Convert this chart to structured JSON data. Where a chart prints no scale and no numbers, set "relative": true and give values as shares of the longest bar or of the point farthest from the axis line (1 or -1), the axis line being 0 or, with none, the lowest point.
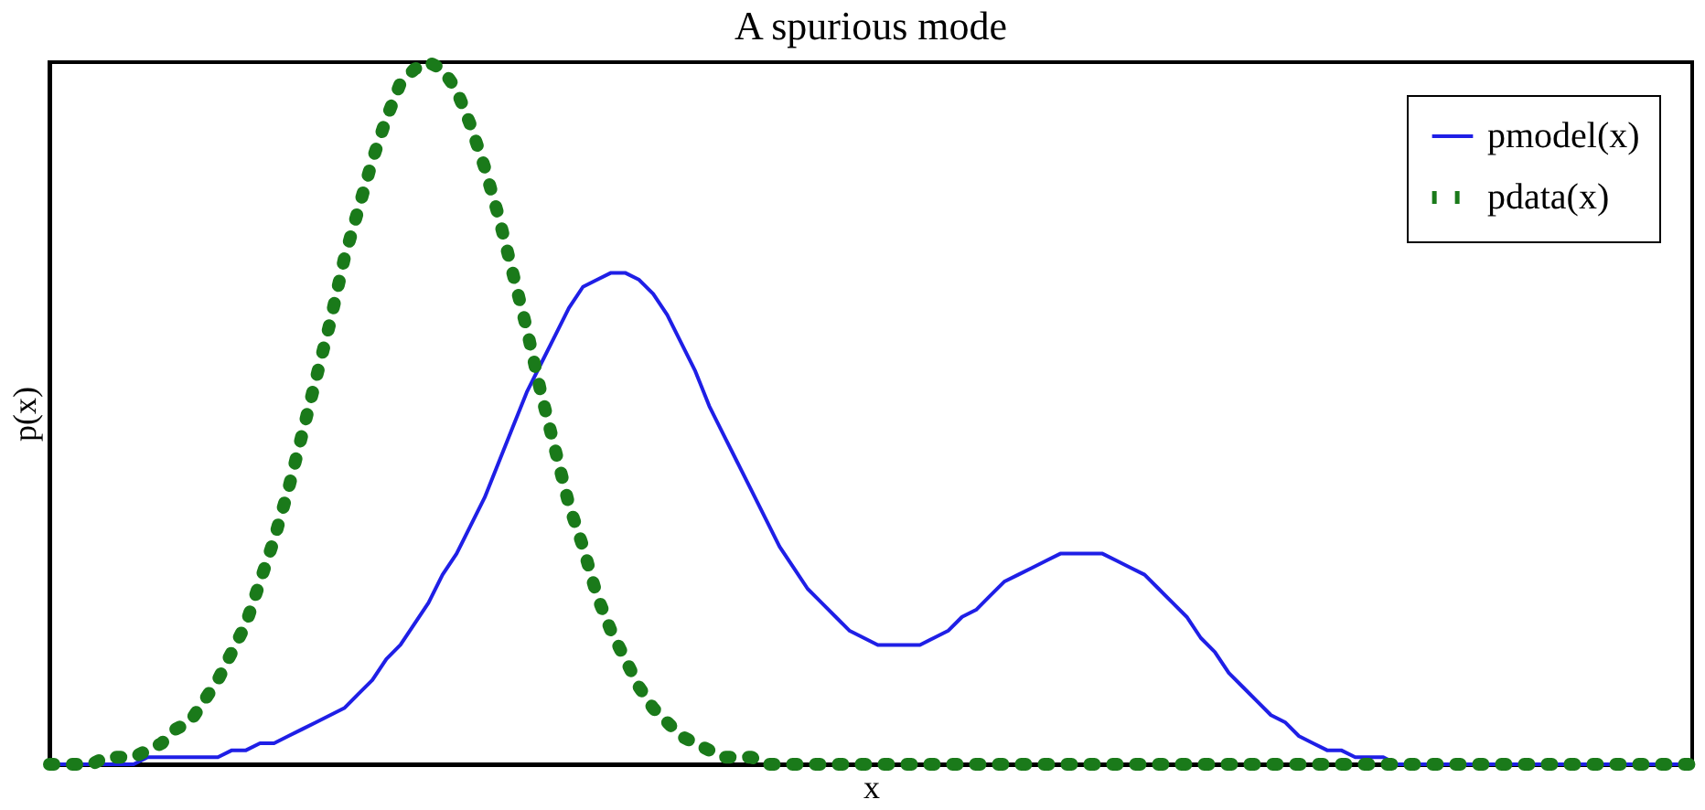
{
  "chart_data": {
    "type": "line",
    "title": "A spurious mode",
    "xlabel": "x",
    "ylabel": "p(x)",
    "relative": true,
    "tick_labels": false,
    "grid": false,
    "legend": "top right",
    "categories": [
      null,
      null,
      null,
      null,
      null,
      null,
      null,
      null,
      null,
      null,
      null,
      null,
      null,
      null,
      null,
      null,
      null,
      null,
      null,
      null,
      null,
      null,
      null,
      null,
      null,
      null,
      null,
      null,
      null,
      null,
      null,
      null,
      null,
      null,
      null,
      null,
      null,
      null,
      null,
      null,
      null,
      null,
      null,
      null,
      null,
      null,
      null,
      null,
      null,
      null,
      null,
      null,
      null,
      null,
      null,
      null,
      null,
      null,
      null,
      null,
      null,
      null,
      null,
      null,
      null,
      null,
      null,
      null,
      null,
      null,
      null,
      null,
      null,
      null,
      null,
      null,
      null,
      null,
      null,
      null,
      null,
      null,
      null,
      null,
      null,
      null,
      null,
      null,
      null,
      null,
      null,
      null,
      null,
      null,
      null,
      null,
      null,
      null,
      null,
      null,
      null,
      null,
      null,
      null,
      null,
      null,
      null,
      null,
      null,
      null,
      null,
      null,
      null,
      null,
      null,
      null,
      null,
      null
    ],
    "series": [
      {
        "name": "pmodel(x)",
        "color": "#1f1fe6",
        "line_style": "solid",
        "marker": "none",
        "values": [
          0.0,
          0.0,
          0.0,
          0.0,
          0.0,
          0.0,
          0.0,
          0.01,
          0.01,
          0.01,
          0.01,
          0.01,
          0.01,
          0.02,
          0.02,
          0.03,
          0.03,
          0.04,
          0.05,
          0.06,
          0.07,
          0.08,
          0.1,
          0.12,
          0.15,
          0.17,
          0.2,
          0.23,
          0.27,
          0.3,
          0.34,
          0.38,
          0.43,
          0.48,
          0.53,
          0.57,
          0.61,
          0.65,
          0.68,
          0.69,
          0.7,
          0.7,
          0.69,
          0.67,
          0.64,
          0.6,
          0.56,
          0.51,
          0.47,
          0.43,
          0.39,
          0.35,
          0.31,
          0.28,
          0.25,
          0.23,
          0.21,
          0.19,
          0.18,
          0.17,
          0.17,
          0.17,
          0.17,
          0.18,
          0.19,
          0.21,
          0.22,
          0.24,
          0.26,
          0.27,
          0.28,
          0.29,
          0.3,
          0.3,
          0.3,
          0.3,
          0.29,
          0.28,
          0.27,
          0.25,
          0.23,
          0.21,
          0.18,
          0.16,
          0.13,
          0.11,
          0.09,
          0.07,
          0.06,
          0.04,
          0.03,
          0.02,
          0.02,
          0.01,
          0.01,
          0.01,
          0.0,
          0.0,
          0.0,
          0.0,
          0.0,
          0.0,
          0.0,
          0.0,
          0.0,
          0.0,
          0.0,
          0.0,
          0.0,
          0.0,
          0.0,
          0.0,
          0.0,
          0.0,
          0.0,
          0.0,
          0.0,
          0.0
        ]
      },
      {
        "name": "pdata(x)",
        "type": "line",
        "color": "#1a7a1a",
        "line_style": "dotted",
        "values": [
          0.0,
          0.0,
          0.0,
          0.0,
          0.01,
          0.01,
          0.01,
          0.02,
          0.03,
          0.05,
          0.06,
          0.09,
          0.12,
          0.16,
          0.2,
          0.26,
          0.32,
          0.39,
          0.47,
          0.55,
          0.63,
          0.72,
          0.79,
          0.86,
          0.92,
          0.97,
          0.99,
          1.0,
          0.99,
          0.96,
          0.91,
          0.85,
          0.78,
          0.7,
          0.62,
          0.53,
          0.45,
          0.37,
          0.31,
          0.24,
          0.19,
          0.15,
          0.11,
          0.08,
          0.06,
          0.04,
          0.03,
          0.02,
          0.01,
          0.01,
          0.01,
          0.0,
          0.0,
          0.0,
          0.0,
          0.0,
          0.0,
          0.0,
          0.0,
          0.0,
          0.0,
          0.0,
          0.0,
          0.0,
          0.0,
          0.0,
          0.0,
          0.0,
          0.0,
          0.0,
          0.0,
          0.0,
          0.0,
          0.0,
          0.0,
          0.0,
          0.0,
          0.0,
          0.0,
          0.0,
          0.0,
          0.0,
          0.0,
          0.0,
          0.0,
          0.0,
          0.0,
          0.0,
          0.0,
          0.0,
          0.0,
          0.0,
          0.0,
          0.0,
          0.0,
          0.0,
          0.0,
          0.0,
          0.0,
          0.0,
          0.0,
          0.0,
          0.0,
          0.0,
          0.0,
          0.0,
          0.0,
          0.0,
          0.0,
          0.0,
          0.0,
          0.0,
          0.0,
          0.0,
          0.0,
          0.0,
          0.0,
          0.0
        ]
      }
    ]
  }
}
